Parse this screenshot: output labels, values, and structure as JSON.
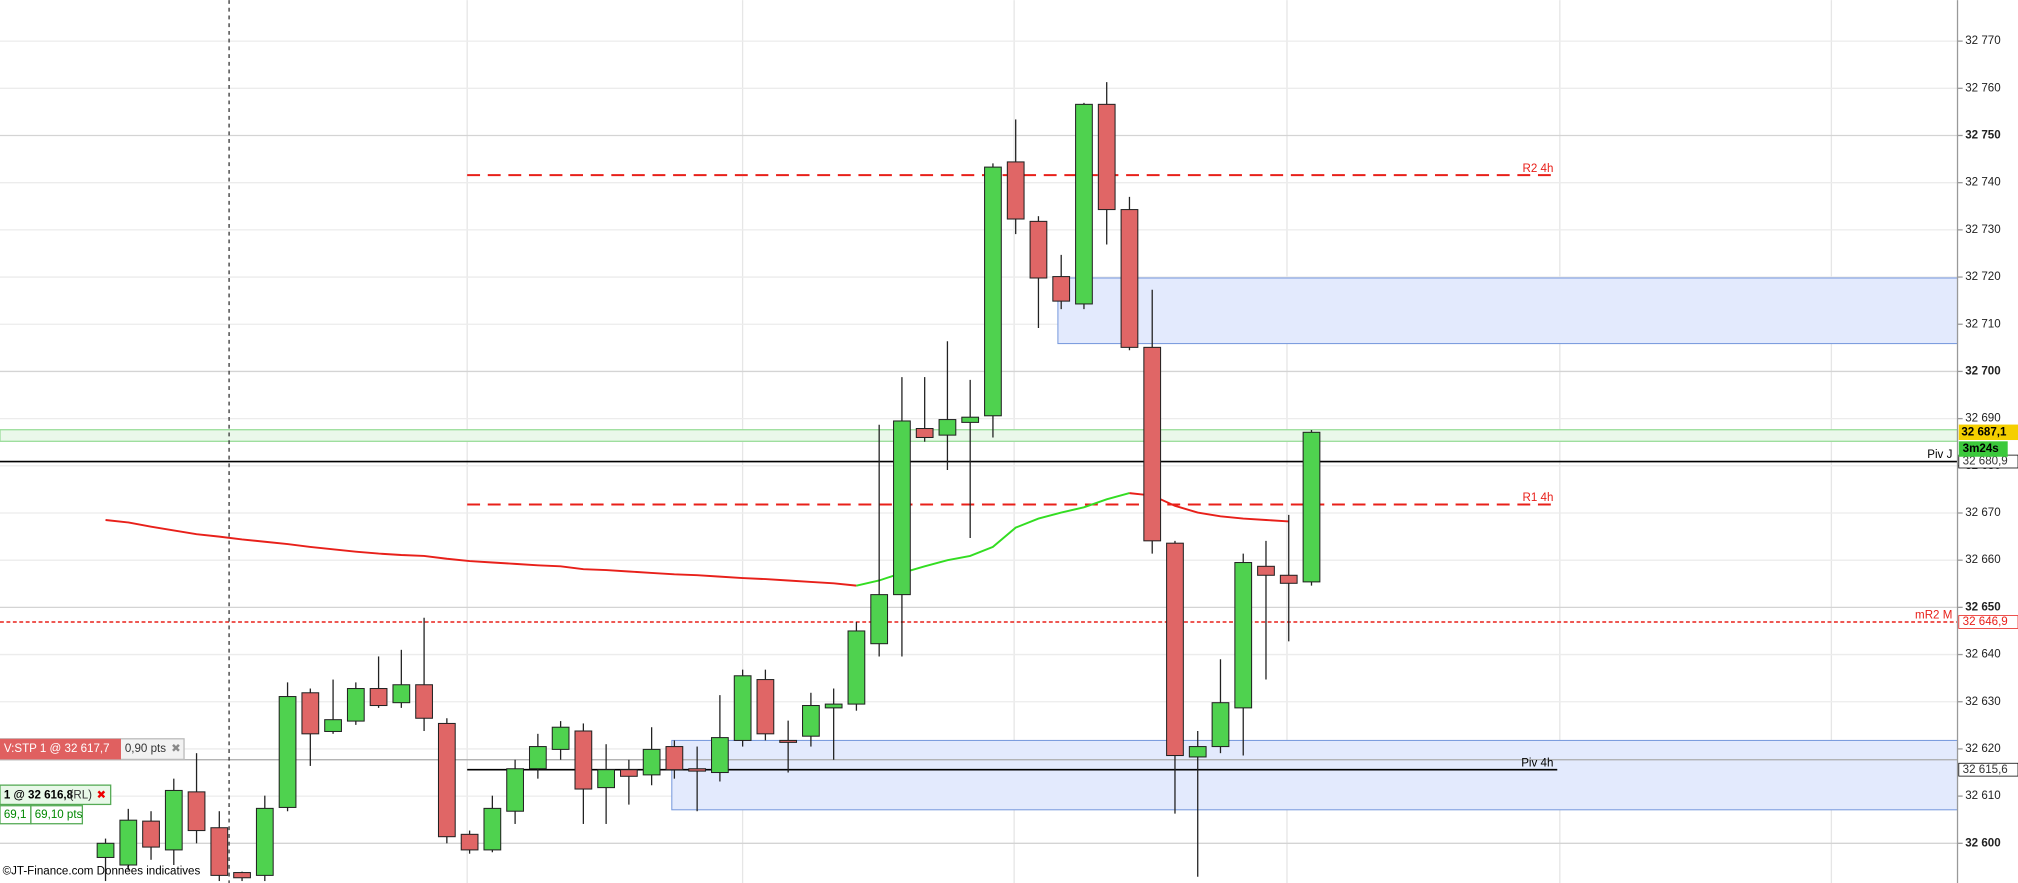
{
  "chart_data": {
    "type": "candlestick",
    "open": [
      32597,
      32595.4,
      32604.7,
      32598.6,
      32610.9,
      32603.3,
      32593.8,
      32593.2,
      32607.6,
      32631.9,
      32623.7,
      32625.9,
      32632.8,
      32629.8,
      32633.6,
      32625.4,
      32601.9,
      32598.6,
      32606.8,
      32615.8,
      32619.9,
      32623.8,
      32611.8,
      32615.6,
      32614.5,
      32620.5,
      32615.8,
      32615.0,
      32621.8,
      32634.7,
      32621.8,
      32622.7,
      32628.7,
      32629.5,
      32642.3,
      32652.7,
      32687.9,
      32686.5,
      32689.2,
      32690.6,
      32744.4,
      32731.8,
      32720.1,
      32714.3,
      32756.6,
      32734.3,
      32705.1,
      32663.6,
      32618.3,
      32620.5,
      32628.7,
      32658.7,
      32656.8,
      32655.4
    ],
    "high": [
      32601,
      32607.3,
      32606.8,
      32613.7,
      32619.1,
      32606.8,
      32594,
      32610.1,
      32634.1,
      32632.8,
      32634.7,
      32634.1,
      32639.6,
      32641.0,
      32647.8,
      32626.5,
      32602.7,
      32610.1,
      32617.7,
      32623.2,
      32625.9,
      32625.4,
      32621.0,
      32617.7,
      32624.6,
      32621.8,
      32620.5,
      32631.4,
      32636.8,
      32636.8,
      32626.0,
      32631.9,
      32632.8,
      32646.9,
      32688.7,
      32698.8,
      32698.8,
      32706.4,
      32698.2,
      32744.1,
      32753.4,
      32732.9,
      32724.7,
      32756.9,
      32761.3,
      32737.0,
      32717.3,
      32664.1,
      32623.8,
      32639.0,
      32661.4,
      32664.1,
      32669.6,
      32687.6
    ],
    "low": [
      32592,
      32594.3,
      32596.5,
      32595.4,
      32600.0,
      32592,
      32592,
      32592,
      32606.8,
      32616.4,
      32623.2,
      32625.1,
      32628.7,
      32628.7,
      32623.8,
      32600.0,
      32597.8,
      32598.1,
      32604.1,
      32613.7,
      32617.7,
      32604.1,
      32604.1,
      32608.2,
      32612.3,
      32613.7,
      32606.8,
      32613.1,
      32620.5,
      32621.8,
      32615.0,
      32620.5,
      32617.7,
      32628.1,
      32639.6,
      32639.6,
      32685.1,
      32679.1,
      32664.7,
      32686.0,
      32729.1,
      32709.2,
      32713.2,
      32713.2,
      32726.9,
      32704.5,
      32661.4,
      32606.3,
      32592.9,
      32619.1,
      32618.6,
      32634.7,
      32642.8,
      32654.6
    ],
    "close": [
      32600,
      32604.9,
      32599.2,
      32611.2,
      32602.7,
      32593.2,
      32592.7,
      32607.4,
      32631.1,
      32623.2,
      32626.2,
      32632.8,
      32629.2,
      32633.6,
      32626.5,
      32601.4,
      32598.6,
      32607.4,
      32615.8,
      32620.5,
      32624.6,
      32611.5,
      32615.6,
      32614.2,
      32619.9,
      32615.6,
      32615.3,
      32622.4,
      32635.5,
      32623.2,
      32621.5,
      32629.2,
      32629.5,
      32645.0,
      32652.7,
      32689.5,
      32686.0,
      32689.8,
      32690.3,
      32743.3,
      32732.3,
      32719.8,
      32714.9,
      32756.6,
      32734.3,
      32705.1,
      32664.1,
      32618.6,
      32620.5,
      32629.8,
      32659.5,
      32656.8,
      32655.1,
      32687.1
    ],
    "up_color": "#4fd24f",
    "down_color": "#e06666",
    "ylim": [
      32591.6,
      32778.7
    ],
    "yticks": [
      {
        "value": 32600,
        "label": "32 600"
      },
      {
        "value": 32610,
        "label": "32 610"
      },
      {
        "value": 32620,
        "label": "32 620"
      },
      {
        "value": 32630,
        "label": "32 630"
      },
      {
        "value": 32640,
        "label": "32 640"
      },
      {
        "value": 32650,
        "label": "32 650"
      },
      {
        "value": 32660,
        "label": "32 660"
      },
      {
        "value": 32670,
        "label": "32 670"
      },
      {
        "value": 32680,
        "label": "32 680"
      },
      {
        "value": 32690,
        "label": "32 690"
      },
      {
        "value": 32700,
        "label": "32 700"
      },
      {
        "value": 32710,
        "label": "32 710"
      },
      {
        "value": 32720,
        "label": "32 720"
      },
      {
        "value": 32730,
        "label": "32 730"
      },
      {
        "value": 32740,
        "label": "32 740"
      },
      {
        "value": 32750,
        "label": "32 750"
      },
      {
        "value": 32760,
        "label": "32 760"
      },
      {
        "value": 32770,
        "label": "32 770"
      }
    ],
    "grid": true,
    "moving_average": [
      {
        "color": "#e8201a",
        "values": [
          32668.5,
          32668.0,
          32667.1,
          32666.3,
          32665.5,
          32665.0,
          32664.4,
          32663.9,
          32663.4,
          32662.8,
          32662.3,
          32661.8,
          32661.4,
          32661.1,
          32660.9,
          32660.3,
          32659.8,
          32659.5,
          32659.2,
          32658.9,
          32658.7,
          32658.1,
          32657.9,
          32657.6,
          32657.3,
          32657.0,
          32656.8,
          32656.5,
          32656.2,
          32656.0,
          32655.7,
          32655.4,
          32655.1,
          32654.6,
          null,
          null,
          null,
          null,
          null,
          null,
          null,
          null,
          null,
          null,
          null,
          32674.2,
          32673.7,
          32671.5,
          32670.1,
          32669.3,
          32668.8,
          32668.5,
          32668.2,
          null
        ]
      },
      {
        "color": "#33dd22",
        "values": [
          null,
          null,
          null,
          null,
          null,
          null,
          null,
          null,
          null,
          null,
          null,
          null,
          null,
          null,
          null,
          null,
          null,
          null,
          null,
          null,
          null,
          null,
          null,
          null,
          null,
          null,
          null,
          null,
          null,
          null,
          null,
          null,
          null,
          32654.6,
          32655.7,
          32657.3,
          32658.7,
          32660.0,
          32660.9,
          32662.8,
          32666.9,
          32668.8,
          32670.1,
          32671.2,
          32672.9,
          32674.2,
          null,
          null,
          null,
          null,
          null,
          null,
          null,
          null
        ]
      }
    ],
    "levels": [
      {
        "name": "R2 4h",
        "value": 32741.6,
        "color": "#e8201a",
        "style": "dashed"
      },
      {
        "name": "R1 4h",
        "value": 32671.8,
        "color": "#e8201a",
        "style": "dashed"
      },
      {
        "name": "Piv 4h",
        "value": {
          "value": 32615.6,
          "label": "32 615,6"
        },
        "color": "#000000",
        "style": "solid"
      },
      {
        "name": "Piv J",
        "value": {
          "value": 32680.9,
          "label": "32 680,9"
        },
        "color": "#000000",
        "style": "solid"
      },
      {
        "name": "mR2 M",
        "value": {
          "value": 32646.9,
          "label": "32 646,9"
        },
        "color": "#e8201a",
        "style": "dotted"
      }
    ],
    "zones": [
      {
        "ymin": 32705.9,
        "ymax": 32719.8,
        "color": "#e3eafd"
      },
      {
        "ymin": 32607.1,
        "ymax": 32621.8,
        "color": "#e3eafd"
      }
    ],
    "last_price": {
      "value": 32687.1,
      "label": "32 687,1"
    },
    "countdown": "3m24s",
    "orders": [
      {
        "label": "V:STP  1 @ 32 617,7",
        "detail": "0,90 pts",
        "price": 32617.7
      },
      {
        "label": "1 @ 32 616,8",
        "tag": "(RL)",
        "pnl": "69,1",
        "pnl_pts": "69,10 pts"
      }
    ],
    "footer": "©JT-Finance.com  Données indicatives"
  }
}
